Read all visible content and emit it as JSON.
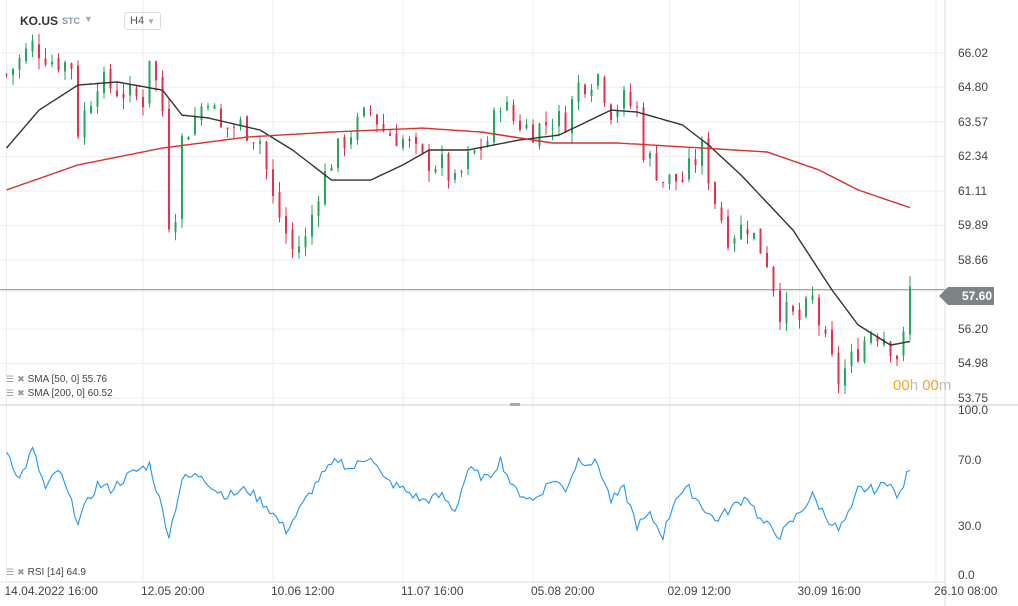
{
  "header": {
    "symbol": "KO.US",
    "type": "STC",
    "timeframe": "H4"
  },
  "legend": {
    "sma50": "SMA [50, 0] 55.76",
    "sma200": "SMA [200, 0] 60.52",
    "rsi": "RSI [14] 64.9"
  },
  "timer": {
    "h": "00",
    "h_unit": "h",
    "m": "00",
    "m_unit": "m"
  },
  "current_price": "57.60",
  "colors": {
    "up": "#26a65b",
    "down": "#e8304a",
    "sma50": "#333333",
    "sma200": "#d9302c",
    "rsi": "#2196f3",
    "grid": "#eeeeee"
  },
  "chart_data": [
    {
      "type": "candlestick",
      "title": "KO.US H4",
      "price_ticks": [
        "66.02",
        "64.80",
        "63.57",
        "62.34",
        "61.11",
        "59.89",
        "58.66",
        "56.20",
        "54.98",
        "53.75"
      ],
      "ylim": [
        53.75,
        66.02
      ],
      "candle_count": 141,
      "x_ticks": [
        {
          "label": "14.04.2022 16:00",
          "idx": 1
        },
        {
          "label": "12.05 20:00",
          "idx": 22
        },
        {
          "label": "10.06 12:00",
          "idx": 42
        },
        {
          "label": "11.07 16:00",
          "idx": 62
        },
        {
          "label": "05.08 20:00",
          "idx": 82
        },
        {
          "label": "02.09 12:00",
          "idx": 103
        },
        {
          "label": "30.09 16:00",
          "idx": 123
        },
        {
          "label": "26.10 08:00",
          "idx": 144
        }
      ],
      "close_path": [
        [
          1,
          65.24
        ],
        [
          5,
          66.3
        ],
        [
          8,
          65.77
        ],
        [
          11,
          65.59
        ],
        [
          12,
          63.28
        ],
        [
          15,
          65.06
        ],
        [
          18,
          64.7
        ],
        [
          22,
          64.35
        ],
        [
          23,
          65.95
        ],
        [
          25,
          63.99
        ],
        [
          26,
          60.08
        ],
        [
          27,
          60.44
        ],
        [
          28,
          62.93
        ],
        [
          32,
          64.53
        ],
        [
          34,
          63.28
        ],
        [
          37,
          63.46
        ],
        [
          40,
          62.93
        ],
        [
          42,
          60.79
        ],
        [
          45,
          59.01
        ],
        [
          47,
          59.37
        ],
        [
          49,
          61.15
        ],
        [
          51,
          62.21
        ],
        [
          53,
          62.93
        ],
        [
          57,
          63.99
        ],
        [
          59,
          63.28
        ],
        [
          62,
          62.93
        ],
        [
          65,
          62.21
        ],
        [
          68,
          62.04
        ],
        [
          70,
          61.33
        ],
        [
          72,
          62.21
        ],
        [
          75,
          62.93
        ],
        [
          77,
          64.35
        ],
        [
          79,
          63.64
        ],
        [
          82,
          63.28
        ],
        [
          85,
          63.64
        ],
        [
          87,
          63.64
        ],
        [
          89,
          64.88
        ],
        [
          92,
          65.24
        ],
        [
          94,
          63.99
        ],
        [
          96,
          64.35
        ],
        [
          98,
          63.99
        ],
        [
          99,
          62.57
        ],
        [
          102,
          61.5
        ],
        [
          105,
          61.5
        ],
        [
          108,
          62.57
        ],
        [
          110,
          60.79
        ],
        [
          112,
          59.55
        ],
        [
          115,
          59.9
        ],
        [
          118,
          58.66
        ],
        [
          120,
          56.88
        ],
        [
          123,
          56.52
        ],
        [
          125,
          57.24
        ],
        [
          127,
          55.63
        ],
        [
          129,
          54.39
        ],
        [
          132,
          55.46
        ],
        [
          134,
          56.17
        ],
        [
          136,
          55.99
        ],
        [
          138,
          55.28
        ],
        [
          139,
          55.81
        ],
        [
          140,
          57.6
        ]
      ],
      "series": [
        {
          "name": "SMA 50",
          "points": [
            [
              1,
              62.64
            ],
            [
              6,
              63.99
            ],
            [
              12,
              64.88
            ],
            [
              18,
              64.99
            ],
            [
              25,
              64.7
            ],
            [
              28,
              63.81
            ],
            [
              32,
              63.71
            ],
            [
              40,
              63.28
            ],
            [
              45,
              62.57
            ],
            [
              51,
              61.5
            ],
            [
              57,
              61.5
            ],
            [
              62,
              62.04
            ],
            [
              66,
              62.57
            ],
            [
              72,
              62.57
            ],
            [
              80,
              62.93
            ],
            [
              86,
              63.1
            ],
            [
              94,
              63.99
            ],
            [
              98,
              63.92
            ],
            [
              105,
              63.46
            ],
            [
              109,
              62.75
            ],
            [
              114,
              61.68
            ],
            [
              122,
              59.72
            ],
            [
              128,
              57.59
            ],
            [
              132,
              56.35
            ],
            [
              137,
              55.63
            ],
            [
              140,
              55.76
            ]
          ]
        },
        {
          "name": "SMA 200",
          "points": [
            [
              1,
              61.15
            ],
            [
              12,
              62.04
            ],
            [
              25,
              62.64
            ],
            [
              38,
              63.03
            ],
            [
              51,
              63.21
            ],
            [
              65,
              63.35
            ],
            [
              74,
              63.21
            ],
            [
              85,
              62.82
            ],
            [
              95,
              62.82
            ],
            [
              108,
              62.64
            ],
            [
              118,
              62.5
            ],
            [
              126,
              61.86
            ],
            [
              132,
              61.15
            ],
            [
              140,
              60.52
            ]
          ]
        }
      ]
    },
    {
      "type": "line",
      "title": "RSI [14]",
      "ylim": [
        0,
        100
      ],
      "y_ticks": [
        "100.0",
        "70.0",
        "30.0",
        "0.0"
      ],
      "series": [
        {
          "name": "RSI 14",
          "points": [
            [
              1,
              76
            ],
            [
              3,
              58
            ],
            [
              5,
              76
            ],
            [
              7,
              52
            ],
            [
              9,
              64
            ],
            [
              12,
              33
            ],
            [
              15,
              55
            ],
            [
              17,
              52
            ],
            [
              20,
              61
            ],
            [
              23,
              67
            ],
            [
              25,
              39
            ],
            [
              26,
              24
            ],
            [
              28,
              58
            ],
            [
              31,
              61
            ],
            [
              33,
              52
            ],
            [
              35,
              48
            ],
            [
              38,
              52
            ],
            [
              41,
              42
            ],
            [
              44,
              27
            ],
            [
              46,
              39
            ],
            [
              49,
              58
            ],
            [
              52,
              70
            ],
            [
              54,
              64
            ],
            [
              57,
              73
            ],
            [
              59,
              58
            ],
            [
              62,
              52
            ],
            [
              65,
              45
            ],
            [
              68,
              48
            ],
            [
              70,
              39
            ],
            [
              72,
              64
            ],
            [
              75,
              58
            ],
            [
              77,
              70
            ],
            [
              79,
              52
            ],
            [
              82,
              45
            ],
            [
              85,
              58
            ],
            [
              87,
              52
            ],
            [
              89,
              70
            ],
            [
              92,
              67
            ],
            [
              94,
              45
            ],
            [
              96,
              52
            ],
            [
              98,
              30
            ],
            [
              100,
              36
            ],
            [
              102,
              24
            ],
            [
              104,
              48
            ],
            [
              106,
              52
            ],
            [
              108,
              42
            ],
            [
              110,
              33
            ],
            [
              112,
              39
            ],
            [
              115,
              48
            ],
            [
              117,
              33
            ],
            [
              120,
              24
            ],
            [
              122,
              33
            ],
            [
              125,
              48
            ],
            [
              127,
              36
            ],
            [
              129,
              27
            ],
            [
              131,
              39
            ],
            [
              132,
              52
            ],
            [
              135,
              52
            ],
            [
              137,
              58
            ],
            [
              138,
              45
            ],
            [
              140,
              64.9
            ]
          ]
        }
      ]
    }
  ]
}
